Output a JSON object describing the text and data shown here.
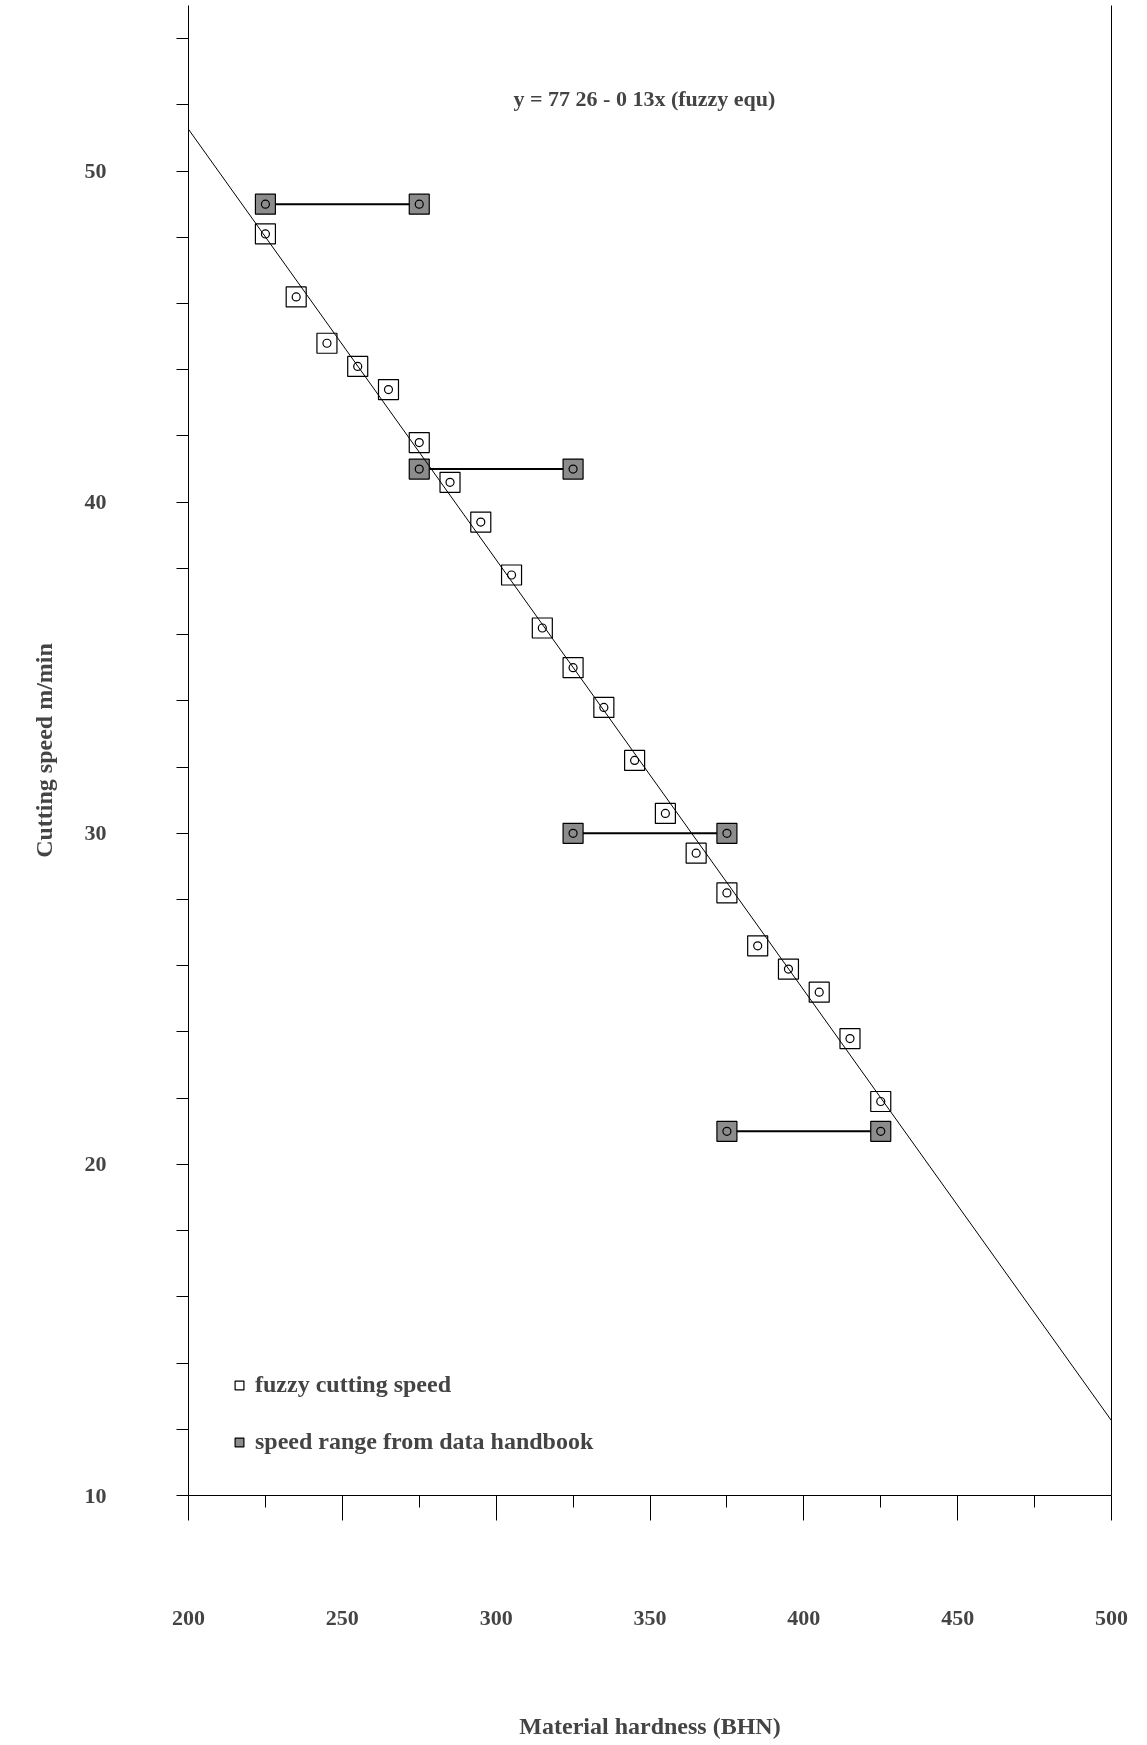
{
  "chart_data": {
    "type": "scatter",
    "xlabel": "Material hardness (BHN)",
    "ylabel": "Cutting speed m/min",
    "annotations": [
      "y = 77 26 - 0 13x   (fuzzy equ)"
    ],
    "xlim": [
      200,
      500
    ],
    "xticks": [
      200,
      {
        "value": 225,
        "label": null
      },
      250,
      {
        "value": 275,
        "label": null
      },
      300,
      {
        "value": 325,
        "label": null
      },
      350,
      {
        "value": 375,
        "label": null
      },
      400,
      {
        "value": 425,
        "label": null
      },
      450,
      {
        "value": 475,
        "label": null
      },
      500
    ],
    "ylim": [
      10,
      55
    ],
    "yticks": [
      10,
      {
        "value": 12,
        "label": null
      },
      {
        "value": 14,
        "label": null
      },
      {
        "value": 16,
        "label": null
      },
      {
        "value": 18,
        "label": null
      },
      20,
      {
        "value": 22,
        "label": null
      },
      {
        "value": 24,
        "label": null
      },
      {
        "value": 26,
        "label": null
      },
      {
        "value": 28,
        "label": null
      },
      30,
      {
        "value": 32,
        "label": null
      },
      {
        "value": 34,
        "label": null
      },
      {
        "value": 36,
        "label": null
      },
      {
        "value": 38,
        "label": null
      },
      40,
      {
        "value": 42,
        "label": null
      },
      {
        "value": 44,
        "label": null
      },
      {
        "value": 46,
        "label": null
      },
      {
        "value": 48,
        "label": null
      },
      50,
      {
        "value": 52,
        "label": null
      },
      {
        "value": 54,
        "label": null
      }
    ],
    "grid": false,
    "legend": "bottom left",
    "marker": "square",
    "series": [
      {
        "name": "fuzzy cutting speed",
        "color": "#ffffff",
        "x": [
          225,
          235,
          245,
          255,
          265,
          275,
          285,
          295,
          305,
          315,
          325,
          335,
          345,
          355,
          365,
          375,
          385,
          395,
          405,
          415,
          425
        ],
        "values": [
          48.1,
          46.2,
          44.8,
          44.1,
          43.4,
          41.8,
          40.6,
          39.4,
          37.8,
          36.2,
          35.0,
          33.8,
          32.2,
          30.6,
          29.4,
          28.2,
          26.6,
          25.9,
          25.2,
          23.8,
          21.9
        ]
      },
      {
        "name": "speed range from data handbook",
        "type": "line",
        "marker": "square",
        "color": "#8c8c8c",
        "x": [
          225,
          275
        ],
        "values": [
          49,
          49
        ]
      },
      {
        "type": "line",
        "marker": "square",
        "color": "#8c8c8c",
        "x": [
          275,
          325
        ],
        "values": [
          41,
          41
        ]
      },
      {
        "type": "line",
        "marker": "square",
        "color": "#8c8c8c",
        "x": [
          325,
          375
        ],
        "values": [
          30,
          30
        ]
      },
      {
        "type": "line",
        "marker": "square",
        "color": "#8c8c8c",
        "x": [
          375,
          425
        ],
        "values": [
          21,
          21
        ]
      },
      {
        "type": "line",
        "marker": "none",
        "color": "#000000",
        "x": [
          200,
          500
        ],
        "values": [
          51.26,
          12.26
        ]
      }
    ]
  }
}
